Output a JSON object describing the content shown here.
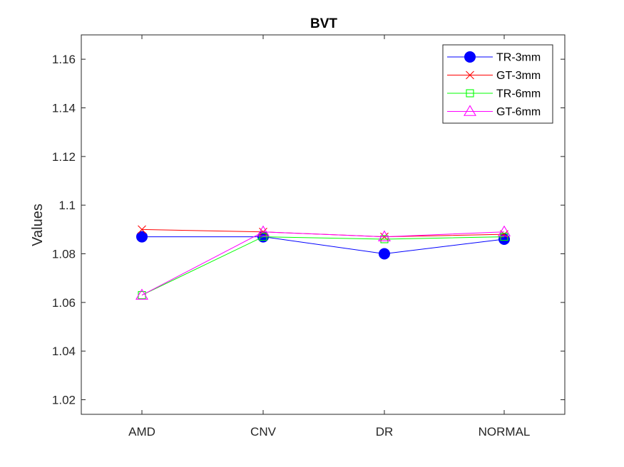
{
  "chart_data": {
    "type": "line",
    "title": "BVT",
    "xlabel": "",
    "ylabel": "Values",
    "categories": [
      "AMD",
      "CNV",
      "DR",
      "NORMAL"
    ],
    "ylim": [
      1.014,
      1.17
    ],
    "yticks": [
      1.02,
      1.04,
      1.06,
      1.08,
      1.1,
      1.12,
      1.14,
      1.16
    ],
    "ytick_labels": [
      "1.02",
      "1.04",
      "1.06",
      "1.08",
      "1.1",
      "1.12",
      "1.14",
      "1.16"
    ],
    "grid": false,
    "legend_position": "top-right",
    "series": [
      {
        "name": "TR-3mm",
        "color": "#0000ff",
        "marker": "filled-circle",
        "values": [
          1.087,
          1.087,
          1.08,
          1.086
        ]
      },
      {
        "name": "GT-3mm",
        "color": "#ff0000",
        "marker": "x",
        "values": [
          1.09,
          1.089,
          1.087,
          1.088
        ]
      },
      {
        "name": "TR-6mm",
        "color": "#00ff00",
        "marker": "square",
        "values": [
          1.063,
          1.087,
          1.086,
          1.087
        ]
      },
      {
        "name": "GT-6mm",
        "color": "#ff00ff",
        "marker": "triangle",
        "values": [
          1.063,
          1.089,
          1.087,
          1.089
        ]
      }
    ]
  }
}
